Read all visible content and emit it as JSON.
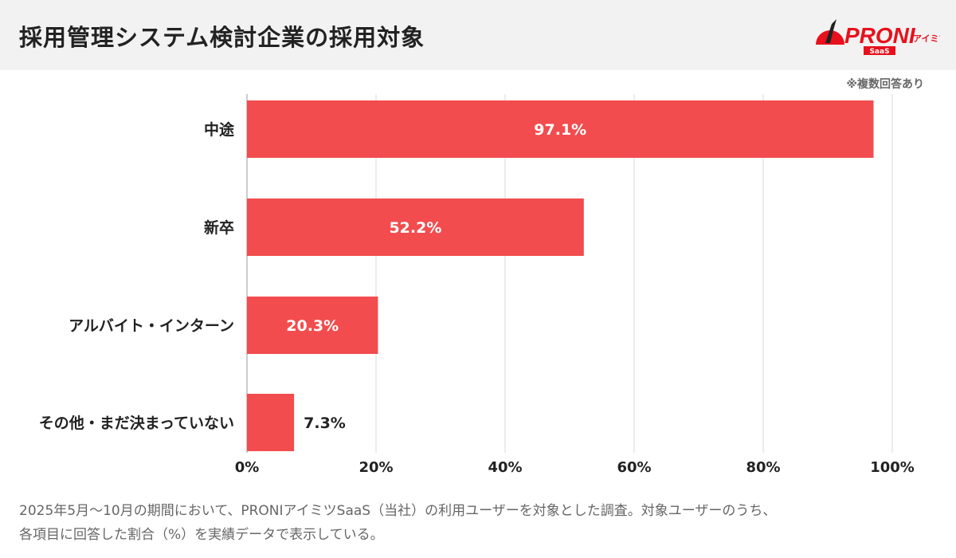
{
  "header": {
    "title": "採用管理システム検討企業の採用対象",
    "logo_text": "PRONIアイミツ SaaS"
  },
  "note": "※複数回答あり",
  "chart_data": {
    "type": "bar",
    "orientation": "horizontal",
    "categories": [
      "中途",
      "新卒",
      "アルバイト・インターン",
      "その他・まだ決まっていない"
    ],
    "values": [
      97.1,
      52.2,
      20.3,
      7.3
    ],
    "value_labels": [
      "97.1%",
      "52.2%",
      "20.3%",
      "7.3%"
    ],
    "xlim": [
      0,
      100
    ],
    "xticks": [
      "0%",
      "20%",
      "40%",
      "60%",
      "80%",
      "100%"
    ],
    "grid": true,
    "bar_color": "#f24c4e",
    "unit": "%"
  },
  "footer": {
    "line1": "2025年5月〜10月の期間において、PRONIアイミツSaaS（当社）の利用ユーザーを対象とした調査。対象ユーザーのうち、",
    "line2": "各項目に回答した割合（%）を実績データで表示している。"
  }
}
